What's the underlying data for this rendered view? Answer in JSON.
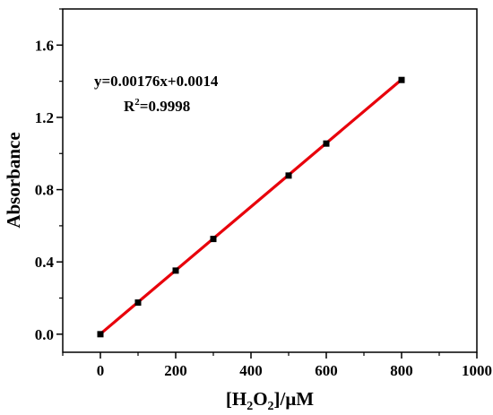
{
  "chart_data": {
    "type": "scatter",
    "title": "",
    "xlabel": {
      "prefix": "[H",
      "sub1": "2",
      "mid": "O",
      "sub2": "2",
      "suffix": "]/μM"
    },
    "ylabel": "Absorbance",
    "xlim": [
      -100,
      1000
    ],
    "ylim": [
      -0.1,
      1.8
    ],
    "xticks": [
      0,
      200,
      400,
      600,
      800,
      1000
    ],
    "xtick_labels": [
      "0",
      "200",
      "400",
      "600",
      "800",
      "1000"
    ],
    "yticks": [
      0.0,
      0.4,
      0.8,
      1.2,
      1.6
    ],
    "ytick_labels": [
      "0.0",
      "0.4",
      "0.8",
      "1.2",
      "1.6"
    ],
    "grid": false,
    "series": [
      {
        "type": "scatter",
        "marker": "square",
        "color": "#000000",
        "x": [
          0,
          100,
          200,
          300,
          500,
          600,
          800
        ],
        "y": [
          0.0,
          0.175,
          0.352,
          0.527,
          0.878,
          1.055,
          1.407
        ]
      },
      {
        "type": "line",
        "color": "#e8000b",
        "x": [
          0,
          800
        ],
        "y": [
          0.0014,
          1.4094
        ]
      }
    ],
    "annotations": {
      "equation": "y=0.00176x+0.0014",
      "r2_prefix": "R",
      "r2_sup": "2",
      "r2_value": "=0.9998"
    }
  }
}
